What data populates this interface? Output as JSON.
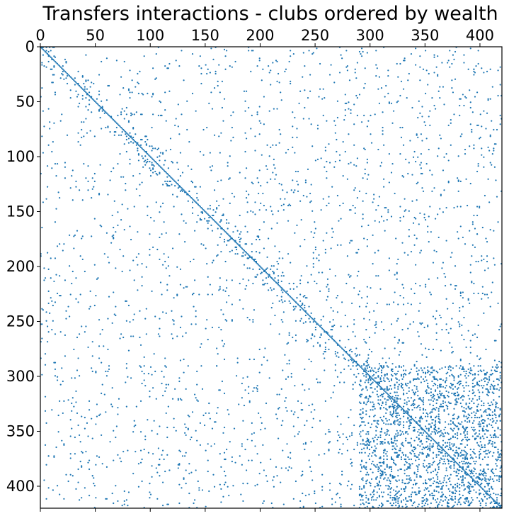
{
  "chart_data": {
    "type": "scatter",
    "plot_kind": "sparsity matrix (spy plot)",
    "title": "Transfers interactions - clubs ordered by wealth",
    "xlabel": "",
    "ylabel": "",
    "x_axis_position": "top",
    "y_axis_inverted": true,
    "xlim": [
      0,
      420
    ],
    "ylim": [
      0,
      420
    ],
    "x_ticks": [
      "0",
      "50",
      "100",
      "150",
      "200",
      "250",
      "300",
      "350",
      "400"
    ],
    "y_ticks": [
      "0",
      "50",
      "100",
      "150",
      "200",
      "250",
      "300",
      "350",
      "400"
    ],
    "grid": false,
    "legend": "none",
    "marker_color": "#1f77b4",
    "series": [
      {
        "kind": "diagonal",
        "description_values": "points where row equals column, for i from 0 to 419",
        "range": [
          0,
          419
        ]
      },
      {
        "kind": "sampled_cells",
        "points": [
          [
            5,
            3
          ],
          [
            12,
            8
          ],
          [
            3,
            17
          ],
          [
            20,
            25
          ],
          [
            31,
            28
          ],
          [
            40,
            38
          ],
          [
            44,
            52
          ],
          [
            58,
            60
          ],
          [
            61,
            72
          ],
          [
            73,
            80
          ],
          [
            88,
            92
          ],
          [
            95,
            99
          ],
          [
            102,
            110
          ],
          [
            115,
            118
          ],
          [
            125,
            128
          ],
          [
            134,
            140
          ],
          [
            146,
            150
          ],
          [
            155,
            162
          ],
          [
            170,
            176
          ],
          [
            184,
            190
          ],
          [
            200,
            206
          ],
          [
            212,
            220
          ],
          [
            230,
            236
          ],
          [
            245,
            250
          ],
          [
            262,
            266
          ],
          [
            280,
            285
          ],
          [
            300,
            302
          ],
          [
            318,
            320
          ],
          [
            335,
            340
          ],
          [
            352,
            356
          ],
          [
            368,
            372
          ],
          [
            380,
            385
          ],
          [
            395,
            398
          ],
          [
            408,
            410
          ],
          [
            415,
            418
          ],
          [
            60,
            10
          ],
          [
            90,
            22
          ],
          [
            130,
            30
          ],
          [
            185,
            40
          ],
          [
            240,
            55
          ],
          [
            300,
            62
          ],
          [
            350,
            71
          ],
          [
            400,
            82
          ],
          [
            10,
            110
          ],
          [
            35,
            130
          ],
          [
            70,
            150
          ],
          [
            110,
            170
          ],
          [
            160,
            190
          ],
          [
            210,
            210
          ],
          [
            260,
            230
          ],
          [
            310,
            250
          ],
          [
            360,
            260
          ],
          [
            405,
            275
          ],
          [
            15,
            300
          ],
          [
            65,
            310
          ],
          [
            120,
            320
          ],
          [
            170,
            330
          ],
          [
            220,
            340
          ],
          [
            270,
            350
          ],
          [
            320,
            360
          ],
          [
            370,
            372
          ],
          [
            410,
            385
          ],
          [
            25,
            395
          ],
          [
            80,
            405
          ],
          [
            140,
            412
          ],
          [
            300,
            330
          ],
          [
            305,
            345
          ],
          [
            310,
            360
          ],
          [
            315,
            375
          ],
          [
            320,
            390
          ],
          [
            325,
            405
          ],
          [
            330,
            300
          ],
          [
            340,
            315
          ],
          [
            345,
            330
          ],
          [
            355,
            345
          ],
          [
            360,
            360
          ],
          [
            365,
            375
          ],
          [
            370,
            390
          ],
          [
            375,
            405
          ],
          [
            380,
            300
          ],
          [
            385,
            318
          ],
          [
            390,
            335
          ],
          [
            395,
            352
          ],
          [
            400,
            370
          ],
          [
            405,
            388
          ],
          [
            410,
            400
          ],
          [
            415,
            412
          ],
          [
            335,
            310
          ],
          [
            348,
            325
          ],
          [
            362,
            338
          ],
          [
            377,
            352
          ],
          [
            391,
            366
          ],
          [
            406,
            380
          ],
          [
            412,
            395
          ],
          [
            418,
            408
          ]
        ]
      }
    ]
  }
}
